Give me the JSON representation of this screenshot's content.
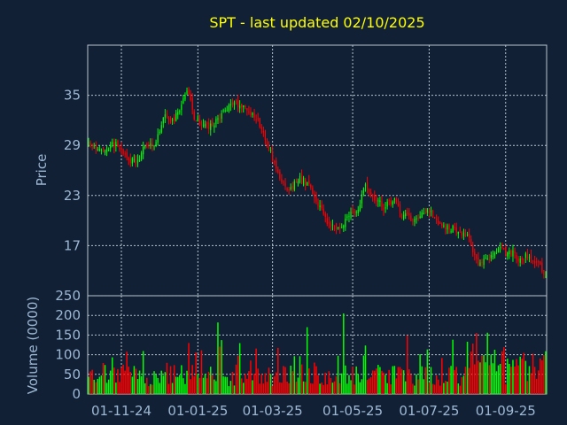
{
  "chart_data": {
    "type": "candlestick",
    "title": "SPT - last updated 02/10/2025",
    "colors": {
      "background": "#112034",
      "grid": "#b8c4d0",
      "axis_text": "#9db8d4",
      "title": "#ffff00",
      "up": "#00ff00",
      "down": "#ff0000"
    },
    "grid": true,
    "price_panel": {
      "ylabel": "Price",
      "ylim": [
        11,
        41
      ],
      "ticks": [
        17,
        23,
        29,
        35
      ]
    },
    "volume_panel": {
      "ylabel": "Volume (0000)",
      "ylim": [
        0,
        250
      ],
      "ticks": [
        0,
        50,
        100,
        150,
        200,
        250
      ]
    },
    "x_tick_labels": [
      "01-11-24",
      "01-01-25",
      "01-03-25",
      "01-05-25",
      "01-07-25",
      "01-09-25"
    ],
    "x_tick_bars": [
      18,
      60,
      101,
      145,
      187,
      229
    ],
    "bar_count": 252,
    "anchors": [
      [
        0,
        29.3
      ],
      [
        8,
        28.7
      ],
      [
        15,
        29.1
      ],
      [
        22,
        27.5
      ],
      [
        26,
        26.8
      ],
      [
        30,
        28.5
      ],
      [
        36,
        29.0
      ],
      [
        42,
        33.0
      ],
      [
        46,
        31.8
      ],
      [
        50,
        33.5
      ],
      [
        55,
        35.5
      ],
      [
        58,
        32.5
      ],
      [
        62,
        31.8
      ],
      [
        66,
        31.0
      ],
      [
        70,
        31.8
      ],
      [
        76,
        33.5
      ],
      [
        82,
        34.0
      ],
      [
        86,
        33.5
      ],
      [
        90,
        32.8
      ],
      [
        94,
        31.5
      ],
      [
        100,
        28.0
      ],
      [
        106,
        24.5
      ],
      [
        110,
        23.8
      ],
      [
        116,
        25.0
      ],
      [
        120,
        24.5
      ],
      [
        126,
        22.0
      ],
      [
        132,
        19.5
      ],
      [
        138,
        19.0
      ],
      [
        142,
        20.5
      ],
      [
        148,
        21.2
      ],
      [
        152,
        24.6
      ],
      [
        156,
        23.0
      ],
      [
        162,
        21.5
      ],
      [
        168,
        22.5
      ],
      [
        172,
        20.5
      ],
      [
        180,
        20.3
      ],
      [
        186,
        21.5
      ],
      [
        190,
        20.5
      ],
      [
        194,
        19.0
      ],
      [
        202,
        19.0
      ],
      [
        208,
        18.0
      ],
      [
        214,
        15.0
      ],
      [
        220,
        15.6
      ],
      [
        226,
        16.5
      ],
      [
        232,
        16.2
      ],
      [
        236,
        15.5
      ],
      [
        242,
        15.8
      ],
      [
        248,
        14.8
      ],
      [
        251,
        13.2
      ]
    ]
  }
}
